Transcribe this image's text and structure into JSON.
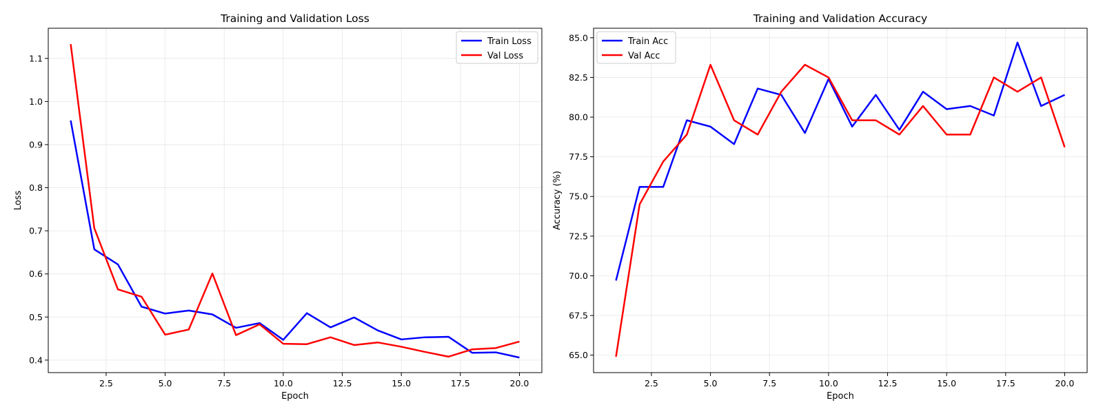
{
  "chart_data": [
    {
      "type": "line",
      "title": "Training and Validation Loss",
      "xlabel": "Epoch",
      "ylabel": "Loss",
      "xlim": [
        0.05,
        20.95
      ],
      "ylim": [
        0.371,
        1.17
      ],
      "xticks": [
        2.5,
        5.0,
        7.5,
        10.0,
        12.5,
        15.0,
        17.5,
        20.0
      ],
      "xtick_labels": [
        "2.5",
        "5.0",
        "7.5",
        "10.0",
        "12.5",
        "15.0",
        "17.5",
        "20.0"
      ],
      "yticks": [
        0.4,
        0.5,
        0.6,
        0.7,
        0.8,
        0.9,
        1.0,
        1.1
      ],
      "ytick_labels": [
        "0.4",
        "0.5",
        "0.6",
        "0.7",
        "0.8",
        "0.9",
        "1.0",
        "1.1"
      ],
      "grid": true,
      "legend_position": "top-right",
      "x": [
        1,
        2,
        3,
        4,
        5,
        6,
        7,
        8,
        9,
        10,
        11,
        12,
        13,
        14,
        15,
        16,
        17,
        18,
        19,
        20
      ],
      "series": [
        {
          "name": "Train Loss",
          "color": "#0000ff",
          "values": [
            0.956,
            0.657,
            0.622,
            0.524,
            0.508,
            0.515,
            0.506,
            0.475,
            0.486,
            0.447,
            0.509,
            0.476,
            0.499,
            0.469,
            0.448,
            0.453,
            0.454,
            0.417,
            0.418,
            0.406
          ]
        },
        {
          "name": "Val Loss",
          "color": "#ff0000",
          "values": [
            1.133,
            0.706,
            0.564,
            0.547,
            0.459,
            0.471,
            0.601,
            0.458,
            0.483,
            0.438,
            0.437,
            0.453,
            0.435,
            0.441,
            0.431,
            0.419,
            0.408,
            0.425,
            0.428,
            0.443
          ]
        }
      ]
    },
    {
      "type": "line",
      "title": "Training and Validation Accuracy",
      "xlabel": "Epoch",
      "ylabel": "Accuracy (%)",
      "xlim": [
        0.05,
        20.95
      ],
      "ylim": [
        63.9,
        85.6
      ],
      "xticks": [
        2.5,
        5.0,
        7.5,
        10.0,
        12.5,
        15.0,
        17.5,
        20.0
      ],
      "xtick_labels": [
        "2.5",
        "5.0",
        "7.5",
        "10.0",
        "12.5",
        "15.0",
        "17.5",
        "20.0"
      ],
      "yticks": [
        65.0,
        67.5,
        70.0,
        72.5,
        75.0,
        77.5,
        80.0,
        82.5,
        85.0
      ],
      "ytick_labels": [
        "65.0",
        "67.5",
        "70.0",
        "72.5",
        "75.0",
        "77.5",
        "80.0",
        "82.5",
        "85.0"
      ],
      "grid": true,
      "legend_position": "top-left",
      "x": [
        1,
        2,
        3,
        4,
        5,
        6,
        7,
        8,
        9,
        10,
        11,
        12,
        13,
        14,
        15,
        16,
        17,
        18,
        19,
        20
      ],
      "series": [
        {
          "name": "Train Acc",
          "color": "#0000ff",
          "values": [
            69.7,
            75.6,
            75.6,
            79.8,
            79.4,
            78.3,
            81.8,
            81.4,
            79.0,
            82.4,
            79.4,
            81.4,
            79.2,
            81.6,
            80.5,
            80.7,
            80.1,
            84.7,
            80.7,
            81.4
          ]
        },
        {
          "name": "Val Acc",
          "color": "#ff0000",
          "values": [
            64.9,
            74.5,
            77.2,
            78.9,
            83.3,
            79.8,
            78.9,
            81.6,
            83.3,
            82.5,
            79.8,
            79.8,
            78.9,
            80.7,
            78.9,
            78.9,
            82.5,
            81.6,
            82.5,
            78.1
          ]
        }
      ]
    }
  ]
}
